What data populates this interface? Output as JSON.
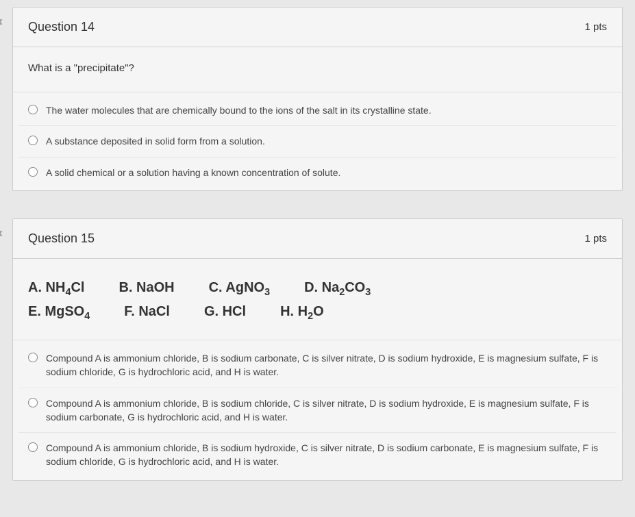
{
  "colors": {
    "page_bg": "#e8e8e8",
    "card_bg": "#f5f5f5",
    "border": "#cccccc",
    "text": "#333333",
    "option_text": "#444444",
    "radio_border": "#888888"
  },
  "typography": {
    "title_fontsize": 18,
    "points_fontsize": 15,
    "prompt_fontsize": 15,
    "compounds_fontsize": 20,
    "option_fontsize": 14
  },
  "questions": [
    {
      "title": "Question 14",
      "points": "1 pts",
      "prompt": "What is a \"precipitate\"?",
      "options": [
        "The water molecules that are chemically bound to the ions of the salt in its crystalline state.",
        "A substance deposited in solid form from a solution.",
        "A solid chemical or a solution having a known concentration of solute."
      ]
    },
    {
      "title": "Question 15",
      "points": "1 pts",
      "compounds_row1": [
        {
          "letter": "A.",
          "formula": "NH4Cl",
          "html": "A. NH<span class='sub'>4</span>Cl"
        },
        {
          "letter": "B.",
          "formula": "NaOH",
          "html": "B. NaOH"
        },
        {
          "letter": "C.",
          "formula": "AgNO3",
          "html": "C. AgNO<span class='sub'>3</span>"
        },
        {
          "letter": "D.",
          "formula": "Na2CO3",
          "html": "D. Na<span class='sub'>2</span>CO<span class='sub'>3</span>"
        }
      ],
      "compounds_row2": [
        {
          "letter": "E.",
          "formula": "MgSO4",
          "html": "E. MgSO<span class='sub'>4</span>"
        },
        {
          "letter": "F.",
          "formula": "NaCl",
          "html": "F. NaCl"
        },
        {
          "letter": "G.",
          "formula": "HCl",
          "html": "G. HCl"
        },
        {
          "letter": "H.",
          "formula": "H2O",
          "html": "H. H<span class='sub'>2</span>O"
        }
      ],
      "options": [
        "Compound A is ammonium chloride, B is sodium carbonate, C is silver nitrate, D is sodium hydroxide, E is magnesium sulfate, F is sodium chloride, G is hydrochloric acid, and H is water.",
        "Compound A is ammonium chloride, B is sodium chloride, C is silver nitrate, D is sodium hydroxide, E is magnesium sulfate, F is sodium carbonate, G is hydrochloric acid, and H is water.",
        "Compound A is ammonium chloride, B is sodium hydroxide, C is silver nitrate, D is sodium carbonate, E is magnesium sulfate, F is sodium chloride, G is hydrochloric acid, and H is water."
      ]
    }
  ]
}
